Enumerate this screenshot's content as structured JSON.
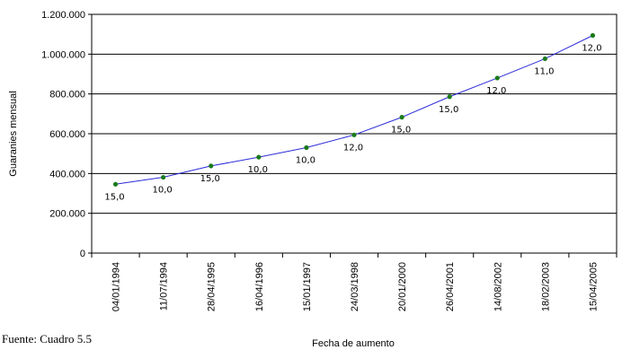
{
  "chart_data": {
    "type": "line",
    "title": "",
    "xlabel": "Fecha de aumento",
    "ylabel": "Guaranies mensual",
    "categories": [
      "04/01/1994",
      "11/07/1994",
      "28/04/1995",
      "16/04/1996",
      "15/01/1997",
      "24/03/1998",
      "20/01/2000",
      "26/04/2001",
      "14/08/2002",
      "18/02/2003",
      "15/04/2005"
    ],
    "series": [
      {
        "values": [
          346000,
          381000,
          438000,
          482000,
          530000,
          594000,
          683000,
          786000,
          880000,
          977000,
          1094000
        ],
        "labels": [
          "15,0",
          "10,0",
          "15,0",
          "10,0",
          "10,0",
          "12,0",
          "15,0",
          "15,0",
          "12,0",
          "11,0",
          "12,0"
        ]
      }
    ],
    "ylim": [
      0,
      1200000
    ],
    "yticks": [
      0,
      200000,
      400000,
      600000,
      800000,
      1000000,
      1200000
    ],
    "ytick_labels": [
      "0",
      "200.000",
      "400.000",
      "600.000",
      "800.000",
      "1.000.000",
      "1.200.000"
    ],
    "grid": true,
    "line_color": "#2b2bd9",
    "marker_color": "#1a7a1a"
  },
  "source_note": "Fuente: Cuadro 5.5"
}
